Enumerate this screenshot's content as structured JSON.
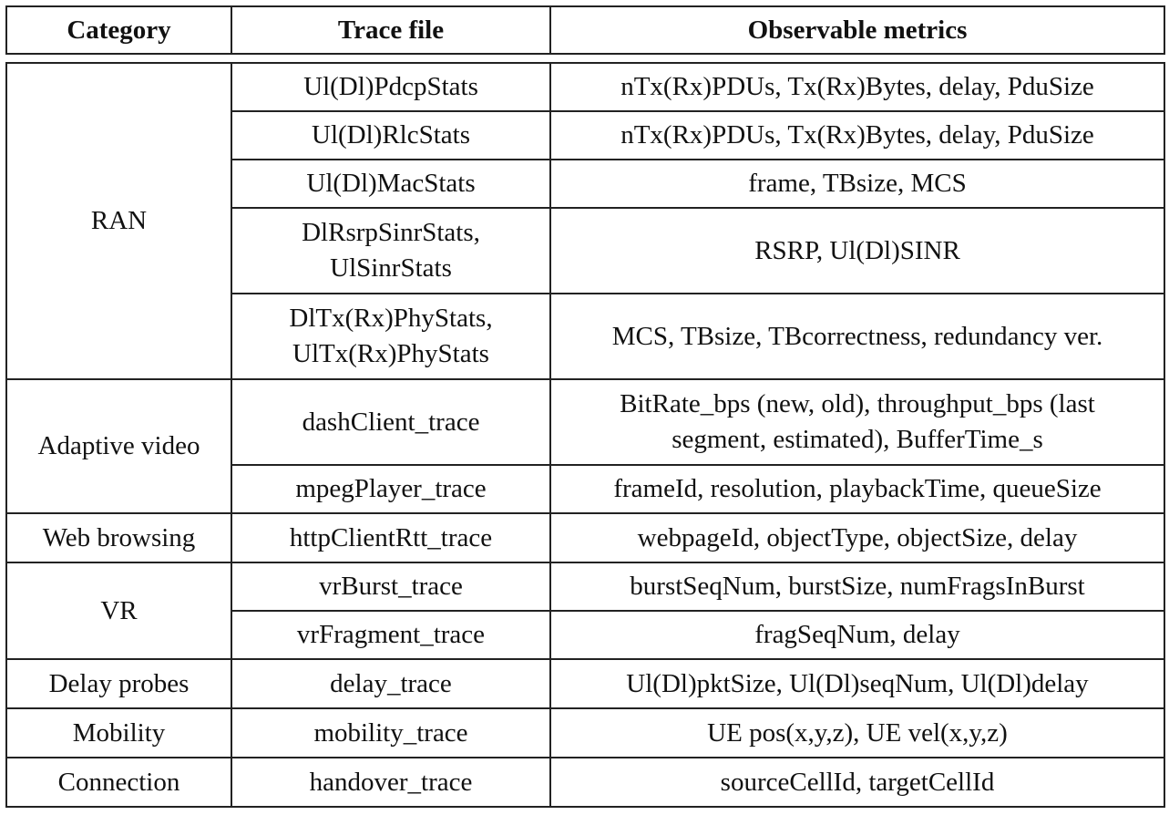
{
  "header": {
    "category": "Category",
    "trace_file": "Trace file",
    "observable_metrics": "Observable metrics"
  },
  "groups": [
    {
      "category": "RAN",
      "rows": [
        {
          "trace": [
            "Ul(Dl)PdcpStats"
          ],
          "metrics": [
            "nTx(Rx)PDUs, Tx(Rx)Bytes, delay, PduSize"
          ]
        },
        {
          "trace": [
            "Ul(Dl)RlcStats"
          ],
          "metrics": [
            "nTx(Rx)PDUs, Tx(Rx)Bytes, delay, PduSize"
          ]
        },
        {
          "trace": [
            "Ul(Dl)MacStats"
          ],
          "metrics": [
            "frame, TBsize, MCS"
          ]
        },
        {
          "trace": [
            "DlRsrpSinrStats,",
            "UlSinrStats"
          ],
          "metrics": [
            "RSRP, Ul(Dl)SINR"
          ]
        },
        {
          "trace": [
            "DlTx(Rx)PhyStats,",
            "UlTx(Rx)PhyStats"
          ],
          "metrics": [
            "MCS, TBsize, TBcorrectness, redundancy ver."
          ]
        }
      ]
    },
    {
      "category": "Adaptive video",
      "rows": [
        {
          "trace": [
            "dashClient_trace"
          ],
          "metrics": [
            "BitRate_bps (new, old), throughput_bps (last",
            "segment, estimated), BufferTime_s"
          ]
        },
        {
          "trace": [
            "mpegPlayer_trace"
          ],
          "metrics": [
            "frameId, resolution, playbackTime, queueSize"
          ]
        }
      ]
    },
    {
      "category": "Web browsing",
      "rows": [
        {
          "trace": [
            "httpClientRtt_trace"
          ],
          "metrics": [
            "webpageId, objectType, objectSize, delay"
          ]
        }
      ]
    },
    {
      "category": "VR",
      "rows": [
        {
          "trace": [
            "vrBurst_trace"
          ],
          "metrics": [
            "burstSeqNum, burstSize, numFragsInBurst"
          ]
        },
        {
          "trace": [
            "vrFragment_trace"
          ],
          "metrics": [
            "fragSeqNum, delay"
          ]
        }
      ]
    },
    {
      "category": "Delay probes",
      "rows": [
        {
          "trace": [
            "delay_trace"
          ],
          "metrics": [
            "Ul(Dl)pktSize, Ul(Dl)seqNum, Ul(Dl)delay"
          ]
        }
      ]
    },
    {
      "category": "Mobility",
      "rows": [
        {
          "trace": [
            "mobility_trace"
          ],
          "metrics": [
            "UE pos(x,y,z), UE vel(x,y,z)"
          ]
        }
      ]
    },
    {
      "category": "Connection",
      "rows": [
        {
          "trace": [
            "handover_trace"
          ],
          "metrics": [
            "sourceCellId, targetCellId"
          ]
        }
      ]
    }
  ]
}
